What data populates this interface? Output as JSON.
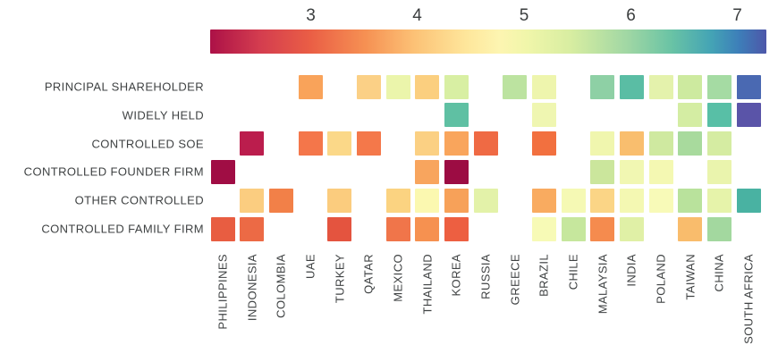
{
  "chart_data": {
    "type": "heatmap",
    "description": "Average score heatmap by ownership category (rows) and country (columns), colored on a Spectral scale",
    "legend_position": "top",
    "colorbar": {
      "ticks": [
        "3",
        "4",
        "5",
        "6",
        "7"
      ],
      "tick_values": [
        3,
        4,
        5,
        6,
        7
      ],
      "value_range": [
        2.05,
        7.3
      ],
      "gradient_stops": [
        {
          "pos": 0,
          "color": "#ac1147"
        },
        {
          "pos": 9,
          "color": "#d43d4f"
        },
        {
          "pos": 18,
          "color": "#ea5e45"
        },
        {
          "pos": 28,
          "color": "#f69153"
        },
        {
          "pos": 37,
          "color": "#fcc377"
        },
        {
          "pos": 46,
          "color": "#fee69b"
        },
        {
          "pos": 52,
          "color": "#fdf5b1"
        },
        {
          "pos": 57,
          "color": "#f0f6aa"
        },
        {
          "pos": 65,
          "color": "#d7eda1"
        },
        {
          "pos": 75,
          "color": "#a0d7a4"
        },
        {
          "pos": 83,
          "color": "#69c3a5"
        },
        {
          "pos": 90,
          "color": "#44a4b5"
        },
        {
          "pos": 95,
          "color": "#3d7fb9"
        },
        {
          "pos": 100,
          "color": "#4d57a9"
        }
      ]
    },
    "rows": [
      "PRINCIPAL SHAREHOLDER",
      "WIDELY HELD",
      "CONTROLLED SOE",
      "CONTROLLED FOUNDER FIRM",
      "OTHER CONTROLLED",
      "CONTROLLED FAMILY FIRM"
    ],
    "columns": [
      "PHILIPPINES",
      "INDONESIA",
      "COLOMBIA",
      "UAE",
      "TURKEY",
      "QATAR",
      "MEXICO",
      "THAILAND",
      "KOREA",
      "RUSSIA",
      "GREECE",
      "BRAZIL",
      "CHILE",
      "MALAYSIA",
      "INDIA",
      "POLAND",
      "TAIWAN",
      "CHINA",
      "SOUTH AFRICA"
    ],
    "values": [
      [
        null,
        null,
        null,
        3.6,
        null,
        4.1,
        5.05,
        4.05,
        5.35,
        null,
        5.6,
        5.0,
        null,
        6.0,
        6.3,
        5.15,
        5.5,
        5.8,
        6.9
      ],
      [
        null,
        null,
        null,
        null,
        null,
        null,
        null,
        null,
        6.3,
        null,
        null,
        5.0,
        null,
        null,
        null,
        null,
        5.4,
        6.3,
        7.2
      ],
      [
        null,
        2.4,
        null,
        3.2,
        4.2,
        3.2,
        null,
        4.1,
        3.6,
        3.1,
        null,
        3.15,
        null,
        5.0,
        3.85,
        5.4,
        5.8,
        5.4,
        null
      ],
      [
        2.1,
        null,
        null,
        null,
        null,
        null,
        null,
        3.6,
        2.1,
        null,
        null,
        null,
        null,
        5.5,
        4.9,
        4.9,
        null,
        5.05,
        null
      ],
      [
        null,
        4.0,
        3.3,
        null,
        4.0,
        null,
        4.1,
        4.8,
        3.6,
        5.15,
        null,
        3.65,
        4.85,
        4.1,
        4.9,
        4.8,
        5.6,
        5.1,
        6.5
      ],
      [
        3.0,
        3.1,
        null,
        null,
        2.9,
        null,
        3.2,
        3.4,
        3.0,
        null,
        null,
        4.85,
        5.55,
        3.4,
        5.2,
        null,
        3.85,
        5.8,
        null
      ]
    ],
    "cell_colors": [
      [
        null,
        null,
        null,
        "#f9a35a",
        null,
        "#fbd086",
        "#ebf5ab",
        "#fbcf7f",
        "#d8efa3",
        null,
        "#bce3a0",
        "#eef5ad",
        null,
        "#8ed0a5",
        "#5abda4",
        "#e4f2ac",
        "#cdea9f",
        "#a5dba3",
        "#4a69b2"
      ],
      [
        null,
        null,
        null,
        null,
        null,
        null,
        null,
        null,
        "#5fc0a3",
        null,
        null,
        "#eff6b1",
        null,
        null,
        null,
        null,
        "#d4eda3",
        "#58bfa6",
        "#5a54a8"
      ],
      [
        null,
        "#bb1d4d",
        null,
        "#f4764a",
        "#fbd888",
        "#f4784a",
        null,
        "#fbd083",
        "#f9a55c",
        "#ef6a44",
        null,
        "#f2703f",
        null,
        "#f0f6ae",
        "#f9be6e",
        "#cfe9a0",
        "#a8da9d",
        "#d5eca2",
        null
      ],
      [
        "#a00d44",
        null,
        null,
        null,
        null,
        null,
        null,
        "#f8a55e",
        "#9c0c43",
        null,
        null,
        null,
        null,
        "#cbe69c",
        "#f1f7b2",
        "#f4f8b2",
        null,
        "#eaf4ad",
        null
      ],
      [
        null,
        "#fbcd80",
        "#f28048",
        null,
        "#fbcc7e",
        null,
        "#fbd381",
        "#fbf8b0",
        "#f7a159",
        "#e3f2a9",
        null,
        "#f9ab60",
        "#f5f9b4",
        "#fbd586",
        "#f4f8b2",
        "#f8fab8",
        "#b9e29c",
        "#e6f3aa",
        "#49b2a2"
      ],
      [
        "#e85d41",
        "#ec6a45",
        null,
        null,
        "#e4543f",
        null,
        "#f0754a",
        "#f69150",
        "#ed5f41",
        null,
        null,
        "#f7fab6",
        "#c6e79d",
        "#f58b4e",
        "#e0f0a6",
        null,
        "#f9bc6c",
        "#a3d89f",
        null
      ]
    ],
    "text_color": "#3f4243"
  }
}
